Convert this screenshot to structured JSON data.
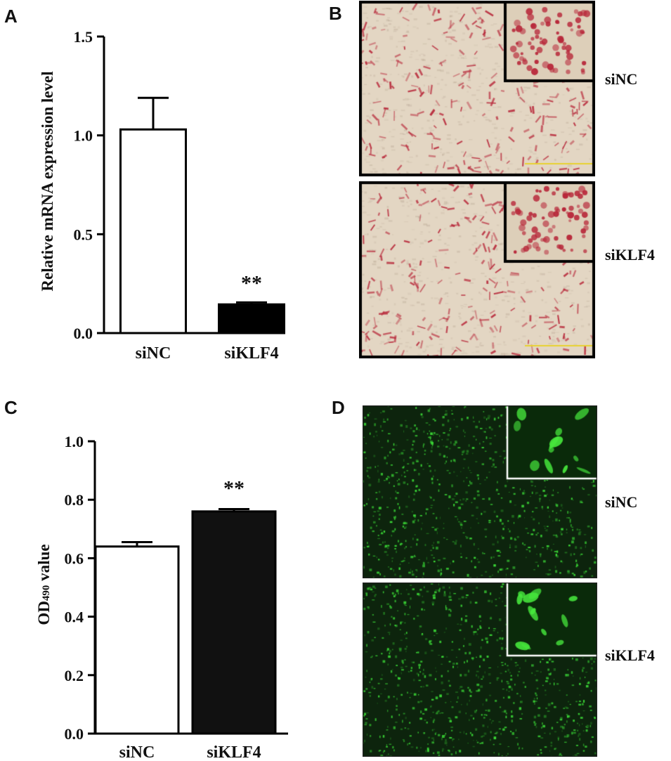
{
  "panels": {
    "A": {
      "letter": "A"
    },
    "B": {
      "letter": "B",
      "labels": [
        "siNC",
        "siKLF4"
      ]
    },
    "C": {
      "letter": "C"
    },
    "D": {
      "letter": "D",
      "labels": [
        "siNC",
        "siKLF4"
      ]
    }
  },
  "chart_data": [
    {
      "panel": "A",
      "type": "bar",
      "categories": [
        "siNC",
        "siKLF4"
      ],
      "values": [
        1.03,
        0.145
      ],
      "errors": [
        0.16,
        0.01
      ],
      "bar_colors": [
        "#ffffff",
        "#000000"
      ],
      "significance": [
        "",
        "**"
      ],
      "ylabel": "Relative mRNA expression level",
      "xlabel": "",
      "ylim": [
        0,
        1.5
      ],
      "yticks": [
        "0.0",
        "0.5",
        "1.0",
        "1.5"
      ]
    },
    {
      "panel": "C",
      "type": "bar",
      "categories": [
        "siNC",
        "siKLF4"
      ],
      "values": [
        0.64,
        0.76
      ],
      "errors": [
        0.015,
        0.008
      ],
      "bar_colors": [
        "#ffffff",
        "#111111"
      ],
      "significance": [
        "",
        "**"
      ],
      "ylabel_main": "OD",
      "ylabel_sub": "490",
      "ylabel_tail": " value",
      "xlabel": "",
      "ylim": [
        0,
        1.0
      ],
      "yticks": [
        "0.0",
        "0.2",
        "0.4",
        "0.6",
        "0.8",
        "1.0"
      ]
    }
  ],
  "colors": {
    "stain_bg": "#e3d6c3",
    "stain_red": "#b8283a",
    "fluor_bg": "#0d240d",
    "fluor_green": "#3fe83a"
  }
}
